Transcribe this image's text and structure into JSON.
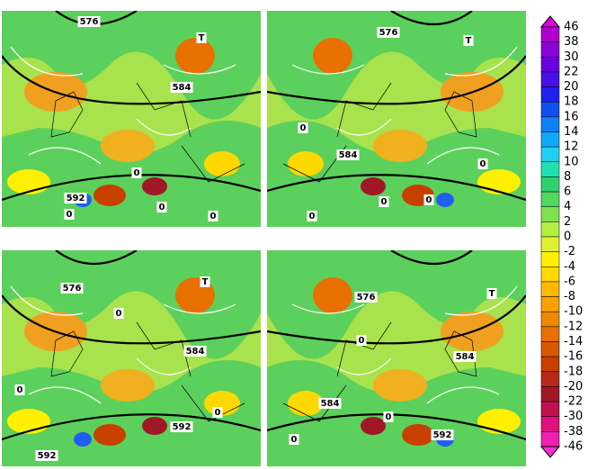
{
  "panels": [
    {
      "labels": [
        "576",
        "584",
        "592",
        "T",
        "0",
        "0",
        "0",
        "0"
      ]
    },
    {
      "labels": [
        "576",
        "584",
        "T",
        "0",
        "0",
        "0",
        "0",
        "0"
      ]
    },
    {
      "labels": [
        "576",
        "584",
        "592",
        "592",
        "T",
        "0",
        "0",
        "0"
      ]
    },
    {
      "labels": [
        "576",
        "584",
        "584",
        "592",
        "T",
        "0",
        "0",
        "0"
      ]
    }
  ],
  "colorbar": {
    "ticks": [
      46,
      38,
      30,
      22,
      20,
      18,
      16,
      14,
      12,
      10,
      8,
      6,
      4,
      2,
      0,
      -2,
      -4,
      -6,
      -8,
      -10,
      -12,
      -14,
      -16,
      -18,
      -20,
      -22,
      -30,
      -38,
      -46
    ],
    "colors": [
      "#b000d0",
      "#8c00d8",
      "#6a00e0",
      "#4a10e8",
      "#2020f0",
      "#1050f0",
      "#1080f8",
      "#10a8f8",
      "#20d0f0",
      "#20e0b0",
      "#30d070",
      "#50d860",
      "#80e050",
      "#b0f040",
      "#e0f030",
      "#fff000",
      "#ffd800",
      "#ffb800",
      "#f8a000",
      "#f08800",
      "#e87000",
      "#d85800",
      "#c84000",
      "#b82818",
      "#a01828",
      "#c01050",
      "#e01080",
      "#f020b0"
    ],
    "top_color": "#e000e0",
    "bottom_color": "#f030d0"
  }
}
